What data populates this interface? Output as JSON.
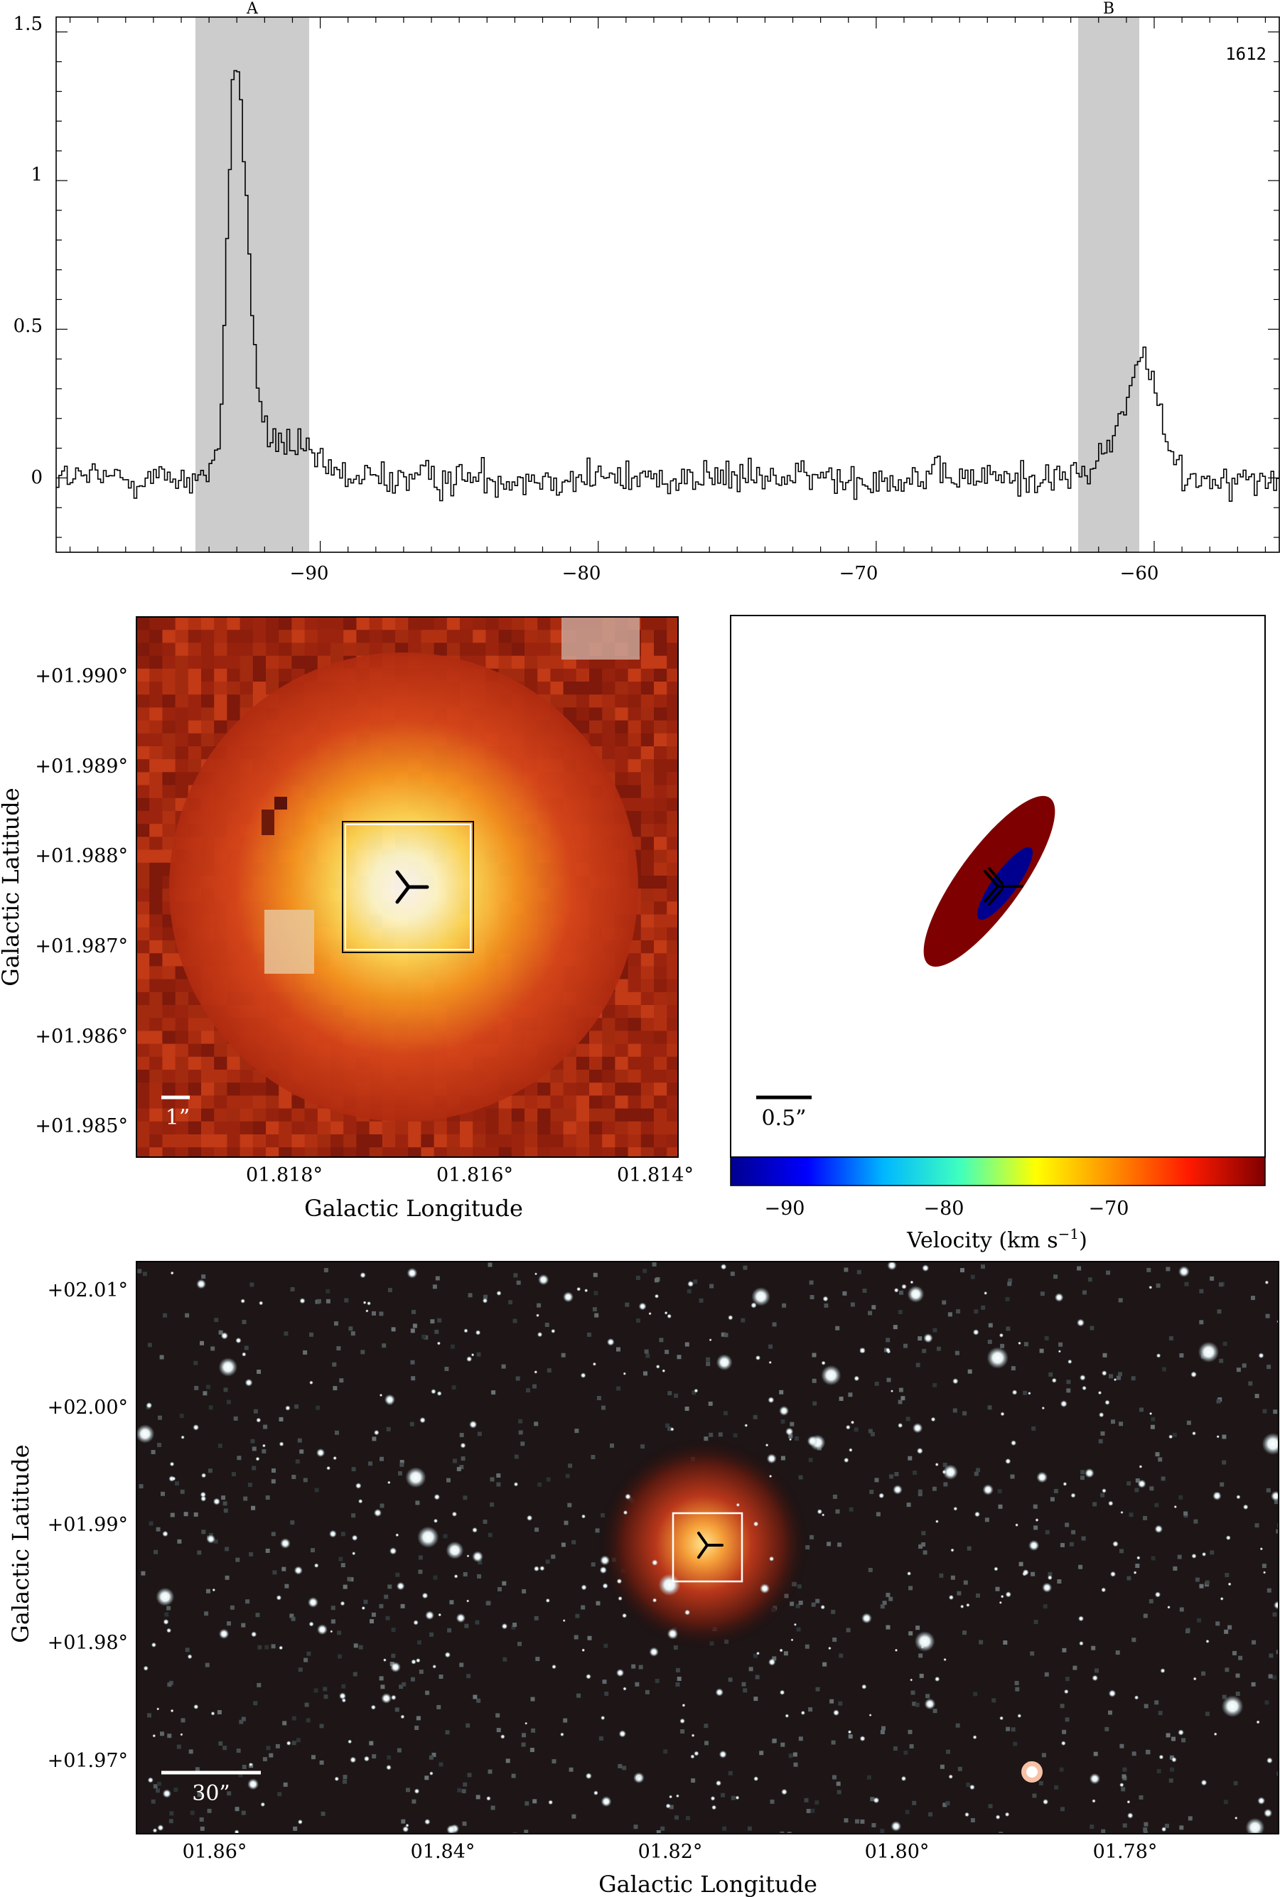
{
  "spectrum": {
    "label": "1612",
    "region_labels": [
      "A",
      "B"
    ],
    "x_ticks": [
      "−90",
      "−80",
      "−70",
      "−60"
    ],
    "y_ticks": [
      "0",
      "0.5",
      "1",
      "1.5"
    ]
  },
  "zoom_panel": {
    "y_ticks": [
      "+01.990°",
      "+01.989°",
      "+01.988°",
      "+01.987°",
      "+01.986°",
      "+01.985°"
    ],
    "x_ticks": [
      "01.818°",
      "01.816°",
      "01.814°"
    ],
    "xlabel": "Galactic Longitude",
    "ylabel": "Galactic Latitude",
    "scalebar_label": "1”"
  },
  "maser_panel": {
    "scalebar_label": "0.5”",
    "colorbar_ticks": [
      "−90",
      "−80",
      "−70"
    ],
    "colorbar_label": "Velocity (km s",
    "colorbar_label_sup": "−1",
    "colorbar_label_close": ")",
    "colorbar_colors": [
      "#00008f",
      "#0000ff",
      "#00b7ff",
      "#3fffbf",
      "#ffff00",
      "#ff8f00",
      "#ff1a00",
      "#7f0000"
    ]
  },
  "wide_panel": {
    "y_ticks": [
      "+02.01°",
      "+02.00°",
      "+01.99°",
      "+01.98°",
      "+01.97°"
    ],
    "x_ticks": [
      "01.86°",
      "01.84°",
      "01.82°",
      "01.80°",
      "01.78°"
    ],
    "xlabel": "Galactic Longitude",
    "ylabel": "Galactic Latitude",
    "scalebar_label": "30”"
  },
  "chart_data": [
    {
      "type": "line",
      "drawstyle": "steps",
      "xlim": [
        -99.5,
        -55.5
      ],
      "ylim": [
        -0.25,
        1.55
      ],
      "label": "1612",
      "shaded_regions": [
        {
          "name": "A",
          "x": [
            -94.0,
            -90.0
          ]
        },
        {
          "name": "B",
          "x": [
            -62.2,
            -60.0
          ]
        }
      ],
      "peaks": [
        {
          "x": -93.1,
          "y": 1.36
        },
        {
          "x": -60.4,
          "y": 0.44
        }
      ],
      "baseline_noise_rms": 0.05,
      "grid": false
    },
    {
      "type": "scatter",
      "content": "maser spot distribution",
      "components": [
        {
          "velocity": -92.5,
          "color": "#00008f"
        },
        {
          "velocity": -60.5,
          "color": "#7f0000"
        }
      ],
      "colorbar": {
        "range": [
          -93.5,
          -59.5
        ],
        "ticks": [
          -90,
          -80,
          -70
        ]
      }
    }
  ]
}
